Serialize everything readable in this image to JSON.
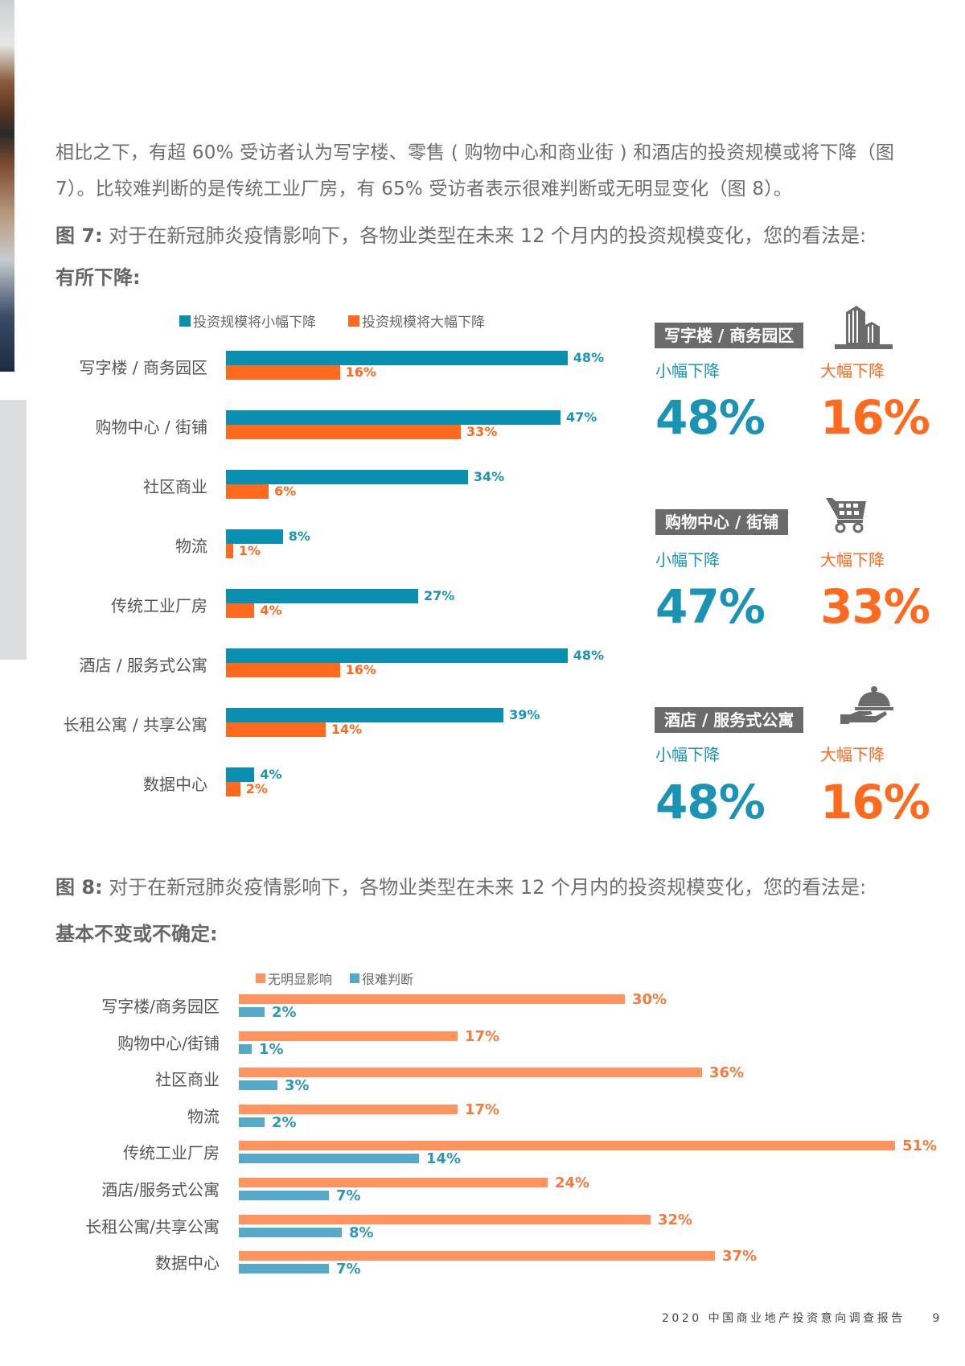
{
  "page": {
    "paragraph_lines": [
      "相比之下，有超 60% 受访者认为写字楼、零售 ( 购物中心和商业街 ) 和酒店的投资规模或将下降（图",
      "7）。比较难判断的是传统工业厂房，有 65% 受访者表示很难判断或无明显变化（图 8）。"
    ],
    "footer_title": "2020 中国商业地产投资意向调查报告",
    "page_number": "9"
  },
  "fig7": {
    "label": "图 7:",
    "title": "对于在新冠肺炎疫情影响下，各物业类型在未来 12 个月内的投资规模变化，您的看法是:",
    "subtitle": "有所下降:",
    "legend": [
      "投资规模将小幅下降",
      "投资规模将大幅下降"
    ],
    "colors": {
      "small_decline": "#0a8fb0",
      "large_decline": "#ff6a1f"
    },
    "categories": [
      "写字楼 / 商务园区",
      "购物中心 / 街铺",
      "社区商业",
      "物流",
      "传统工业厂房",
      "酒店 / 服务式公寓",
      "长租公寓 / 共享公寓",
      "数据中心"
    ],
    "small": [
      "48%",
      "47%",
      "34%",
      "8%",
      "27%",
      "48%",
      "39%",
      "4%"
    ],
    "large": [
      "16%",
      "33%",
      "6%",
      "1%",
      "4%",
      "16%",
      "14%",
      "2%"
    ]
  },
  "highlights": [
    {
      "tag": "写字楼 / 商务园区",
      "icon": "office-building-icon",
      "small_label": "小幅下降",
      "small_value": "48%",
      "large_label": "大幅下降",
      "large_value": "16%"
    },
    {
      "tag": "购物中心 / 街铺",
      "icon": "shopping-cart-icon",
      "small_label": "小幅下降",
      "small_value": "47%",
      "large_label": "大幅下降",
      "large_value": "33%"
    },
    {
      "tag": "酒店 / 服务式公寓",
      "icon": "serving-cloche-icon",
      "small_label": "小幅下降",
      "small_value": "48%",
      "large_label": "大幅下降",
      "large_value": "16%"
    }
  ],
  "fig8": {
    "label": "图 8:",
    "title": "对于在新冠肺炎疫情影响下，各物业类型在未来 12 个月内的投资规模变化，您的看法是:",
    "subtitle": "基本不变或不确定:",
    "legend": [
      "无明显影响",
      "很难判断"
    ],
    "colors": {
      "no_impact": "#ff9460",
      "hard_to_judge": "#56a9c8"
    },
    "categories": [
      "写字楼/商务园区",
      "购物中心/街铺",
      "社区商业",
      "物流",
      "传统工业厂房",
      "酒店/服务式公寓",
      "长租公寓/共享公寓",
      "数据中心"
    ],
    "no_impact": [
      "30%",
      "17%",
      "36%",
      "17%",
      "51%",
      "24%",
      "32%",
      "37%"
    ],
    "hard": [
      "2%",
      "1%",
      "3%",
      "2%",
      "14%",
      "7%",
      "8%",
      "7%"
    ]
  },
  "chart_data": [
    {
      "type": "bar",
      "orientation": "horizontal",
      "title": "图 7: 对于在新冠肺炎疫情影响下，各物业类型在未来 12 个月内的投资规模变化，您的看法是: 有所下降",
      "categories": [
        "写字楼 / 商务园区",
        "购物中心 / 街铺",
        "社区商业",
        "物流",
        "传统工业厂房",
        "酒店 / 服务式公寓",
        "长租公寓 / 共享公寓",
        "数据中心"
      ],
      "series": [
        {
          "name": "投资规模将小幅下降",
          "values": [
            48,
            47,
            34,
            8,
            27,
            48,
            39,
            4
          ],
          "color": "#0a8fb0"
        },
        {
          "name": "投资规模将大幅下降",
          "values": [
            16,
            33,
            6,
            1,
            4,
            16,
            14,
            2
          ],
          "color": "#ff6a1f"
        }
      ],
      "xlabel": "",
      "ylabel": "",
      "unit": "%",
      "legend_position": "top",
      "grid": false
    },
    {
      "type": "bar",
      "orientation": "horizontal",
      "title": "图 8: 对于在新冠肺炎疫情影响下，各物业类型在未来 12 个月内的投资规模变化，您的看法是: 基本不变或不确定",
      "categories": [
        "写字楼/商务园区",
        "购物中心/街铺",
        "社区商业",
        "物流",
        "传统工业厂房",
        "酒店/服务式公寓",
        "长租公寓/共享公寓",
        "数据中心"
      ],
      "series": [
        {
          "name": "无明显影响",
          "values": [
            30,
            17,
            36,
            17,
            51,
            24,
            32,
            37
          ],
          "color": "#ff9460"
        },
        {
          "name": "很难判断",
          "values": [
            2,
            1,
            3,
            2,
            14,
            7,
            8,
            7
          ],
          "color": "#56a9c8"
        }
      ],
      "xlabel": "",
      "ylabel": "",
      "unit": "%",
      "legend_position": "top",
      "grid": false
    }
  ]
}
